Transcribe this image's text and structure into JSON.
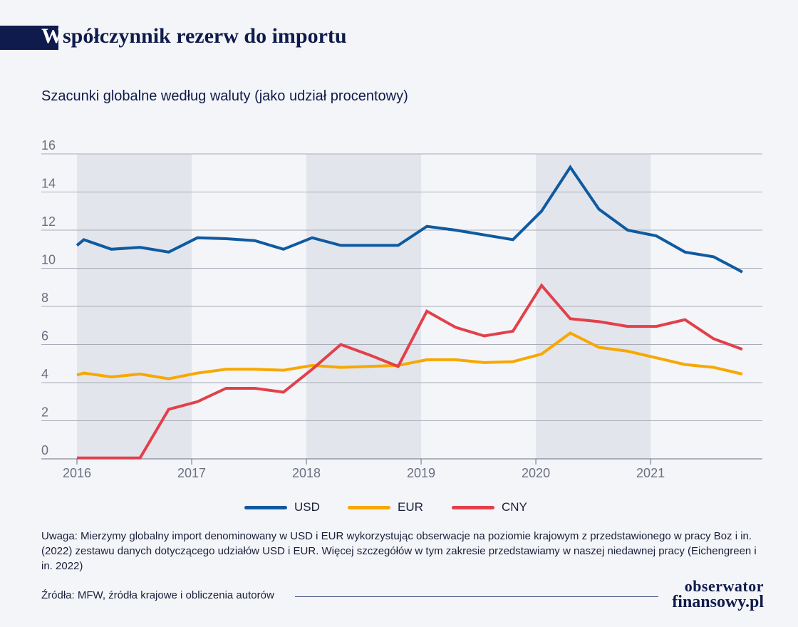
{
  "header": {
    "title_first_letter": "W",
    "title_rest": "spółczynnik rezerw do importu",
    "subtitle": "Szacunki globalne według waluty (jako udział procentowy)"
  },
  "chart_data": {
    "type": "line",
    "title": "Współczynnik rezerw do importu",
    "subtitle": "Szacunki globalne według waluty (jako udział procentowy)",
    "xlabel": "",
    "ylabel": "",
    "x_ticks": [
      "2016",
      "2017",
      "2018",
      "2019",
      "2020",
      "2021"
    ],
    "xlim": [
      2016,
      2021.9
    ],
    "y_ticks": [
      0,
      2,
      4,
      6,
      8,
      10,
      12,
      14,
      16
    ],
    "ylim": [
      0,
      16
    ],
    "grid": "horizontal",
    "shaded_years": [
      "2016",
      "2018",
      "2020"
    ],
    "legend_position": "bottom",
    "series": [
      {
        "name": "USD",
        "color": "#0f5aa0",
        "x": [
          2016.0,
          2016.06,
          2016.3,
          2016.55,
          2016.8,
          2017.05,
          2017.3,
          2017.55,
          2017.8,
          2018.05,
          2018.3,
          2018.55,
          2018.8,
          2019.05,
          2019.3,
          2019.55,
          2019.8,
          2020.05,
          2020.3,
          2020.55,
          2020.8,
          2021.05,
          2021.3,
          2021.55,
          2021.8
        ],
        "values": [
          11.2,
          11.5,
          11.0,
          11.1,
          10.85,
          11.6,
          11.55,
          11.45,
          11.0,
          11.6,
          11.2,
          11.2,
          11.2,
          12.2,
          12.0,
          11.75,
          11.5,
          13.0,
          15.3,
          13.1,
          12.0,
          11.7,
          10.85,
          10.6,
          9.8
        ]
      },
      {
        "name": "EUR",
        "color": "#f7a800",
        "x": [
          2016.0,
          2016.06,
          2016.3,
          2016.55,
          2016.8,
          2017.05,
          2017.3,
          2017.55,
          2017.8,
          2018.05,
          2018.3,
          2018.55,
          2018.8,
          2019.05,
          2019.3,
          2019.55,
          2019.8,
          2020.05,
          2020.3,
          2020.55,
          2020.8,
          2021.05,
          2021.3,
          2021.55,
          2021.8
        ],
        "values": [
          4.4,
          4.5,
          4.3,
          4.45,
          4.2,
          4.5,
          4.7,
          4.7,
          4.65,
          4.9,
          4.8,
          4.85,
          4.9,
          5.2,
          5.2,
          5.05,
          5.1,
          5.5,
          6.6,
          5.85,
          5.65,
          5.3,
          4.95,
          4.8,
          4.45
        ]
      },
      {
        "name": "CNY",
        "color": "#e2404a",
        "x": [
          2016.0,
          2016.06,
          2016.3,
          2016.55,
          2016.8,
          2017.05,
          2017.3,
          2017.55,
          2017.8,
          2018.05,
          2018.3,
          2018.55,
          2018.8,
          2019.05,
          2019.3,
          2019.55,
          2019.8,
          2020.05,
          2020.3,
          2020.55,
          2020.8,
          2021.05,
          2021.3,
          2021.55,
          2021.8
        ],
        "values": [
          0.05,
          0.05,
          0.05,
          0.05,
          2.6,
          3.0,
          3.7,
          3.7,
          3.5,
          4.7,
          6.0,
          5.45,
          4.85,
          7.75,
          6.9,
          6.45,
          6.7,
          9.1,
          7.35,
          7.2,
          6.95,
          6.95,
          7.3,
          6.3,
          5.75
        ]
      }
    ]
  },
  "legend": [
    {
      "label": "USD",
      "color": "#0f5aa0"
    },
    {
      "label": "EUR",
      "color": "#f7a800"
    },
    {
      "label": "CNY",
      "color": "#e2404a"
    }
  ],
  "footer": {
    "note": "Uwaga: Mierzymy globalny import denominowany w USD i EUR wykorzystując obserwacje na poziomie krajowym z przedstawionego w pracy Boz i in. (2022) zestawu danych dotyczącego udziałów USD i EUR. Więcej szczegółów w tym zakresie przedstawiamy w naszej niedawnej pracy (Eichengreen i in. 2022)",
    "source": "Źródła: MFW, źródła krajowe i obliczenia autorów",
    "logo_top": "obserwator",
    "logo_bottom": "finansowy.pl"
  }
}
